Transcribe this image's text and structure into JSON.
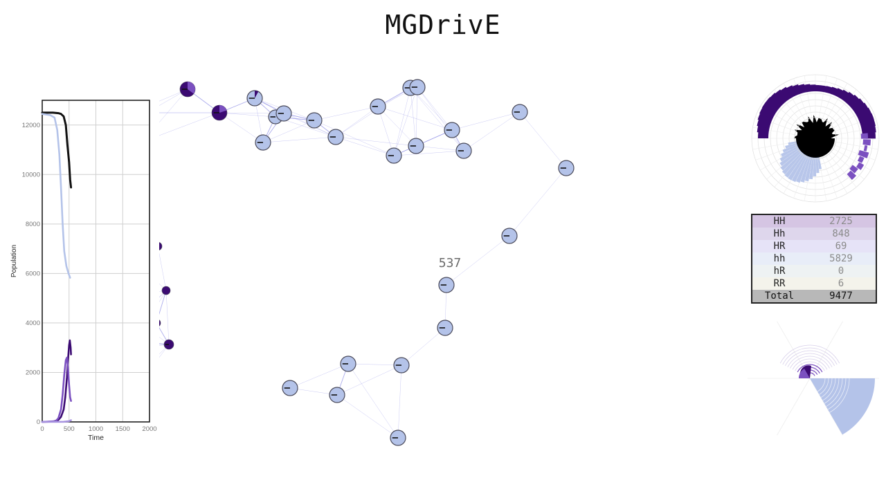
{
  "title": "MGDrivE",
  "day_counter": "537",
  "colors": {
    "HH": "#3b0a72",
    "Hh": "#7b50c0",
    "HR": "#a894e0",
    "hh": "#b4c3e9",
    "total": "#111111",
    "edge": "#6666dd",
    "node_stroke": "#4a4a5a"
  },
  "chart_data": {
    "type": "line",
    "xlabel": "Time",
    "ylabel": "Population",
    "xlim": [
      0,
      2000
    ],
    "ylim": [
      0,
      13000
    ],
    "xticks": [
      0,
      500,
      1000,
      1500,
      2000
    ],
    "yticks": [
      0,
      2000,
      4000,
      6000,
      8000,
      10000,
      12000
    ],
    "grid": true,
    "series": [
      {
        "color_key": "total",
        "points": [
          [
            0,
            12500
          ],
          [
            100,
            12500
          ],
          [
            200,
            12500
          ],
          [
            300,
            12480
          ],
          [
            350,
            12450
          ],
          [
            400,
            12350
          ],
          [
            440,
            12000
          ],
          [
            470,
            11200
          ],
          [
            500,
            10500
          ],
          [
            520,
            9800
          ],
          [
            537,
            9477
          ]
        ]
      },
      {
        "color_key": "hh",
        "points": [
          [
            0,
            12450
          ],
          [
            150,
            12400
          ],
          [
            230,
            12300
          ],
          [
            280,
            11800
          ],
          [
            320,
            10800
          ],
          [
            350,
            9500
          ],
          [
            380,
            8000
          ],
          [
            410,
            6900
          ],
          [
            450,
            6300
          ],
          [
            490,
            6000
          ],
          [
            520,
            5829
          ]
        ]
      },
      {
        "color_key": "HH",
        "points": [
          [
            0,
            0
          ],
          [
            200,
            10
          ],
          [
            300,
            80
          ],
          [
            350,
            200
          ],
          [
            400,
            500
          ],
          [
            430,
            1000
          ],
          [
            460,
            1800
          ],
          [
            480,
            2500
          ],
          [
            500,
            3100
          ],
          [
            515,
            3300
          ],
          [
            530,
            3000
          ],
          [
            537,
            2725
          ]
        ]
      },
      {
        "color_key": "Hh",
        "points": [
          [
            0,
            0
          ],
          [
            250,
            30
          ],
          [
            300,
            150
          ],
          [
            350,
            500
          ],
          [
            380,
            1100
          ],
          [
            410,
            1900
          ],
          [
            440,
            2500
          ],
          [
            460,
            2600
          ],
          [
            480,
            2200
          ],
          [
            500,
            1500
          ],
          [
            520,
            1000
          ],
          [
            537,
            848
          ]
        ]
      },
      {
        "color_key": "HR",
        "points": [
          [
            0,
            0
          ],
          [
            400,
            5
          ],
          [
            500,
            30
          ],
          [
            537,
            69
          ]
        ]
      }
    ]
  },
  "table": {
    "rows": [
      {
        "label": "HH",
        "count": "2725",
        "bg": "#d5c5e3"
      },
      {
        "label": "Hh",
        "count": "848",
        "bg": "#ded6ec"
      },
      {
        "label": "HR",
        "count": "69",
        "bg": "#e6e3f7"
      },
      {
        "label": "hh",
        "count": "5829",
        "bg": "#e8edf8"
      },
      {
        "label": "hR",
        "count": "0",
        "bg": "#eef2f3"
      },
      {
        "label": "RR",
        "count": "6",
        "bg": "#f4f3eb"
      }
    ],
    "total_label": "Total",
    "total_count": "9477",
    "total_bg": "#b8b8b8"
  }
}
